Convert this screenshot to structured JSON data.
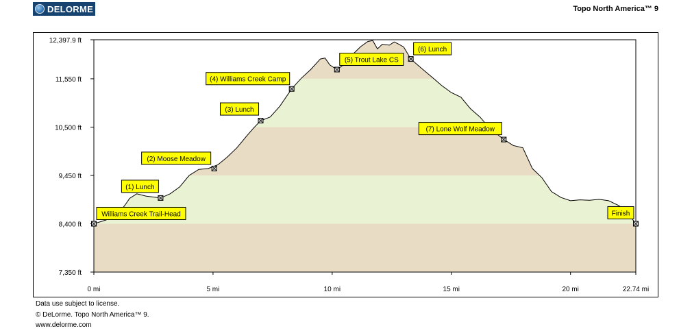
{
  "header": {
    "logo_text": "DELORME",
    "product": "Topo North America™ 9"
  },
  "footer": {
    "line1": "Data use subject to license.",
    "line2": "© DeLorme. Topo North America™ 9.",
    "line3": "www.delorme.com"
  },
  "chart_data": {
    "type": "area",
    "title": "",
    "xlabel": "",
    "ylabel": "",
    "x_unit": "mi",
    "y_unit": "ft",
    "xlim": [
      0,
      22.74
    ],
    "ylim": [
      7350,
      12397.9
    ],
    "x_ticks": [
      "0 mi",
      "5 mi",
      "10 mi",
      "15 mi",
      "20 mi",
      "22.74 mi"
    ],
    "x_tick_values": [
      0,
      5,
      10,
      15,
      20,
      22.74
    ],
    "y_ticks": [
      "12,397.9 ft",
      "11,550 ft",
      "10,500 ft",
      "9,450 ft",
      "8,400 ft",
      "7,350 ft"
    ],
    "y_tick_values": [
      12397.9,
      11550,
      10500,
      9450,
      8400,
      7350
    ],
    "band_colors": [
      "#e8dcc4",
      "#eaf2d4"
    ],
    "line_color": "#000000",
    "profile": {
      "x": [
        0,
        0.5,
        1.0,
        1.3,
        1.5,
        1.8,
        2.2,
        2.5,
        2.8,
        3.2,
        3.6,
        4.0,
        4.4,
        4.8,
        5.2,
        5.6,
        6.0,
        6.4,
        6.7,
        7.0,
        7.4,
        7.8,
        8.3,
        8.7,
        9.1,
        9.5,
        9.7,
        9.9,
        10.2,
        10.6,
        10.9,
        11.2,
        11.5,
        11.7,
        11.9,
        12.1,
        12.4,
        12.6,
        12.8,
        13.0,
        13.3,
        13.7,
        14.2,
        14.6,
        15.0,
        15.4,
        15.8,
        16.2,
        16.6,
        17.2,
        17.6,
        18.0,
        18.4,
        18.8,
        19.2,
        19.6,
        20.0,
        20.4,
        20.8,
        21.2,
        21.6,
        22.0,
        22.3,
        22.74
      ],
      "y": [
        8400,
        8480,
        8600,
        8800,
        8950,
        9050,
        9000,
        8980,
        8960,
        9050,
        9200,
        9450,
        9580,
        9600,
        9680,
        9850,
        10050,
        10300,
        10480,
        10640,
        10720,
        10950,
        11330,
        11560,
        11750,
        11980,
        12000,
        11850,
        11750,
        11900,
        12100,
        12250,
        12360,
        12380,
        12200,
        12300,
        12280,
        12350,
        12300,
        12240,
        11980,
        11800,
        11580,
        11400,
        11250,
        11150,
        10900,
        10720,
        10480,
        10230,
        10100,
        10050,
        9600,
        9400,
        9100,
        8970,
        8900,
        8920,
        8910,
        8930,
        8900,
        8800,
        8700,
        8400
      ]
    },
    "waypoints": [
      {
        "label": "Williams Creek Trail-Head",
        "x": 0,
        "y": 8400
      },
      {
        "label": "(1) Lunch",
        "x": 2.8,
        "y": 8960
      },
      {
        "label": "(2) Moose Meadow",
        "x": 5.05,
        "y": 9600
      },
      {
        "label": "(3) Lunch",
        "x": 7.0,
        "y": 10640
      },
      {
        "label": "(4) Williams Creek Camp",
        "x": 8.3,
        "y": 11330
      },
      {
        "label": "(5) Trout Lake CS",
        "x": 10.2,
        "y": 11750
      },
      {
        "label": "(6) Lunch",
        "x": 13.3,
        "y": 11980
      },
      {
        "label": "(7) Lone Wolf Meadow",
        "x": 17.2,
        "y": 10230
      },
      {
        "label": "Finish",
        "x": 22.74,
        "y": 8400
      }
    ]
  }
}
